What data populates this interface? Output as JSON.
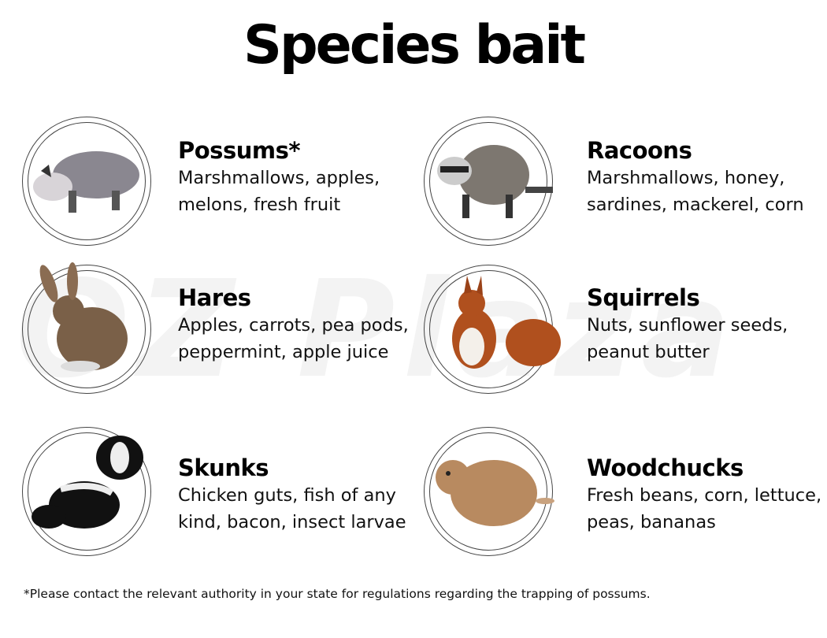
{
  "title": "Species bait",
  "watermark": "OZ Plaza",
  "species": [
    {
      "name": "Possums*",
      "bait_lines": [
        "Marshmallows, apples,",
        "melons, fresh fruit"
      ],
      "icon": "possum-image",
      "color": "#8a8790"
    },
    {
      "name": "Racoons",
      "bait_lines": [
        "Marshmallows, honey,",
        "sardines, mackerel, corn"
      ],
      "icon": "raccoon-image",
      "color": "#7d7770"
    },
    {
      "name": "Hares",
      "bait_lines": [
        "Apples, carrots, pea pods,",
        "peppermint, apple juice"
      ],
      "icon": "hare-image",
      "color": "#7a6048"
    },
    {
      "name": "Squirrels",
      "bait_lines": [
        "Nuts, sunflower seeds,",
        "peanut butter"
      ],
      "icon": "squirrel-image",
      "color": "#b0501e"
    },
    {
      "name": "Skunks",
      "bait_lines": [
        "Chicken guts, fish of any",
        "kind, bacon, insect larvae"
      ],
      "icon": "skunk-image",
      "color": "#111111"
    },
    {
      "name": "Woodchucks",
      "bait_lines": [
        "Fresh beans, corn, lettuce,",
        "peas, bananas"
      ],
      "icon": "woodchuck-image",
      "color": "#b88a60"
    }
  ],
  "footnote": "*Please contact the relevant authority in your state for regulations regarding the trapping of possums."
}
